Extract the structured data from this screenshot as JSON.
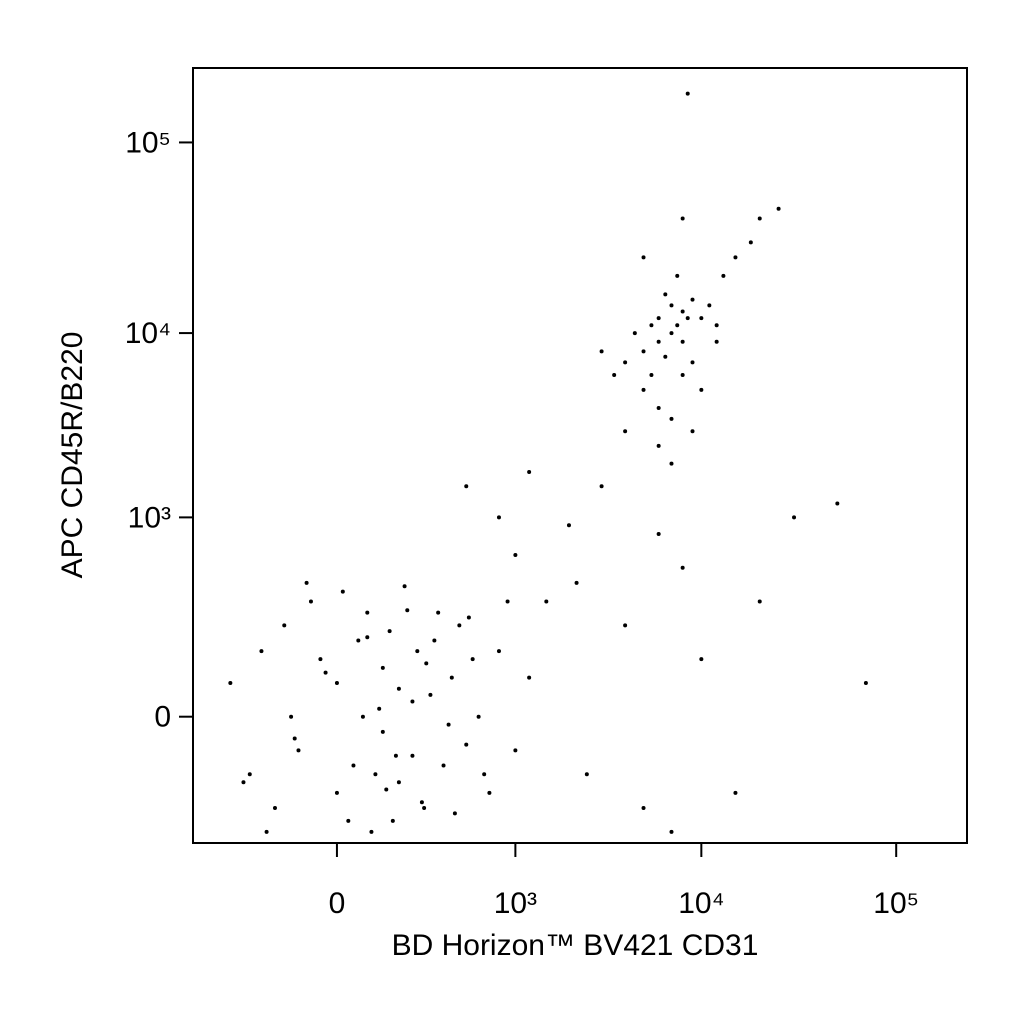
{
  "chart_data": {
    "type": "scatter",
    "xlabel": "BD Horizon™ BV421  CD31",
    "ylabel": "APC CD45R/B220",
    "xscale": "biexponential",
    "yscale": "biexponential",
    "xlim": [
      -620,
      230000
    ],
    "ylim": [
      -357,
      245000
    ],
    "xticks": [
      0,
      {
        "value": 1000,
        "label": "10³"
      },
      {
        "value": 10000,
        "label": "10⁴"
      },
      {
        "value": 100000,
        "label": "10⁵"
      }
    ],
    "yticks": [
      0,
      {
        "value": 1000,
        "label": "10³"
      },
      {
        "value": 10000,
        "label": "10⁴"
      },
      {
        "value": 100000,
        "label": "10⁵"
      }
    ],
    "color": "#000000",
    "x": [
      -350,
      -250,
      -200,
      -150,
      -120,
      -100,
      -80,
      -50,
      -30,
      0,
      0,
      20,
      40,
      50,
      60,
      80,
      100,
      100,
      120,
      150,
      150,
      180,
      200,
      220,
      250,
      280,
      300,
      350,
      400,
      450,
      500,
      550,
      600,
      700,
      800,
      900,
      1000,
      1200,
      -180,
      -60,
      10,
      70,
      130,
      170,
      240,
      320,
      380,
      260,
      90,
      30,
      -20,
      -90,
      140,
      200,
      60,
      110,
      420,
      520,
      650,
      -280,
      4000,
      5000,
      5500,
      6000,
      6000,
      6500,
      7000,
      7000,
      7500,
      8000,
      8000,
      8500,
      9000,
      10000,
      11000,
      12000,
      5000,
      6000,
      7000,
      8000,
      9000,
      4500,
      5500,
      6500,
      7500,
      3500,
      3000,
      13000,
      15000,
      20000,
      25000,
      18000,
      4000,
      6000,
      9000,
      10000,
      7000,
      8000,
      5000,
      12000,
      1000,
      1500,
      2000,
      2500,
      3000,
      4000,
      5000,
      6000,
      8000,
      10000,
      15000,
      20000,
      30000,
      50000,
      70000,
      1200,
      2200,
      800,
      500,
      7000,
      8500
    ],
    "y": [
      50,
      -100,
      120,
      -200,
      200,
      0,
      -50,
      300,
      100,
      -150,
      50,
      -250,
      150,
      0,
      250,
      -100,
      80,
      -20,
      180,
      -120,
      40,
      260,
      -60,
      120,
      -200,
      30,
      150,
      -80,
      60,
      200,
      -40,
      100,
      0,
      -150,
      120,
      300,
      -50,
      60,
      -300,
      400,
      350,
      -300,
      -250,
      380,
      -180,
      250,
      -10,
      90,
      10,
      -80,
      70,
      -30,
      -60,
      20,
      160,
      -140,
      -220,
      230,
      -100,
      -120,
      7000,
      8000,
      6000,
      9000,
      12000,
      7500,
      10000,
      14000,
      11000,
      9000,
      13000,
      12000,
      15000,
      12000,
      14000,
      11000,
      5000,
      4000,
      3500,
      6000,
      7000,
      10000,
      11000,
      16000,
      20000,
      6000,
      8000,
      20000,
      25000,
      40000,
      45000,
      30000,
      3000,
      2500,
      3000,
      5000,
      2000,
      40000,
      25000,
      9000,
      600,
      300,
      900,
      -100,
      1500,
      200,
      -200,
      800,
      500,
      100,
      -150,
      300,
      1000,
      1200,
      50,
      1800,
      400,
      1000,
      1500,
      -300,
      180000
    ]
  }
}
